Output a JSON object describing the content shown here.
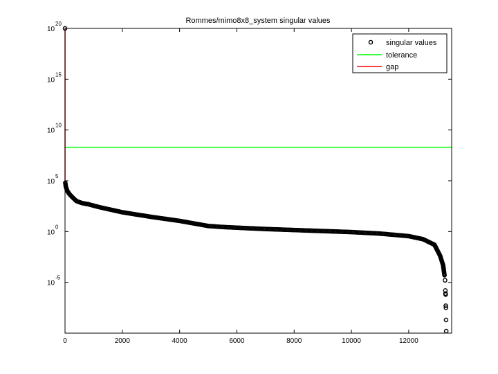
{
  "chart_data": {
    "type": "scatter",
    "title": "Rommes/mimo8x8_system singular values",
    "xlabel": "",
    "ylabel": "",
    "xlim": [
      0,
      13500
    ],
    "ylim_log10": [
      -10,
      20
    ],
    "y_scale": "log",
    "grid": false,
    "legend_position": "top-right",
    "x_ticks": [
      "0",
      "2000",
      "4000",
      "6000",
      "8000",
      "10000",
      "12000"
    ],
    "x_tick_values": [
      0,
      2000,
      4000,
      6000,
      8000,
      10000,
      12000
    ],
    "y_ticks": [
      {
        "base": "10",
        "exp": "-5",
        "value_log10": -5
      },
      {
        "base": "10",
        "exp": "0",
        "value_log10": 0
      },
      {
        "base": "10",
        "exp": "5",
        "value_log10": 5
      },
      {
        "base": "10",
        "exp": "10",
        "value_log10": 10
      },
      {
        "base": "10",
        "exp": "15",
        "value_log10": 15
      },
      {
        "base": "10",
        "exp": "20",
        "value_log10": 20
      }
    ],
    "series": [
      {
        "name": "singular values",
        "marker": "circle",
        "color": "#000000",
        "points_log10": [
          [
            1,
            20
          ],
          [
            10,
            4.8
          ],
          [
            30,
            4.4
          ],
          [
            80,
            4.0
          ],
          [
            150,
            3.7
          ],
          [
            250,
            3.4
          ],
          [
            400,
            3.0
          ],
          [
            600,
            2.8
          ],
          [
            800,
            2.7
          ],
          [
            1200,
            2.4
          ],
          [
            2000,
            1.9
          ],
          [
            3000,
            1.45
          ],
          [
            4000,
            1.05
          ],
          [
            5000,
            0.55
          ],
          [
            5500,
            0.45
          ],
          [
            6000,
            0.38
          ],
          [
            7000,
            0.25
          ],
          [
            8000,
            0.15
          ],
          [
            9000,
            0.05
          ],
          [
            10000,
            -0.05
          ],
          [
            11000,
            -0.2
          ],
          [
            12000,
            -0.45
          ],
          [
            12500,
            -0.75
          ],
          [
            12900,
            -1.3
          ],
          [
            13100,
            -2.4
          ],
          [
            13200,
            -3.3
          ],
          [
            13250,
            -4.3
          ],
          [
            13270,
            -4.8
          ],
          [
            13280,
            -5.8
          ],
          [
            13285,
            -6.1
          ],
          [
            13290,
            -6.2
          ],
          [
            13295,
            -7.3
          ],
          [
            13300,
            -7.5
          ],
          [
            13305,
            -8.7
          ],
          [
            13310,
            -9.8
          ]
        ]
      },
      {
        "name": "tolerance",
        "marker": "line",
        "color": "#00ff00",
        "value_log10": 8.3
      },
      {
        "name": "gap",
        "marker": "line",
        "color": "#ff0000",
        "x": 1,
        "from_log10": 4.8,
        "to_log10": 20
      }
    ]
  }
}
